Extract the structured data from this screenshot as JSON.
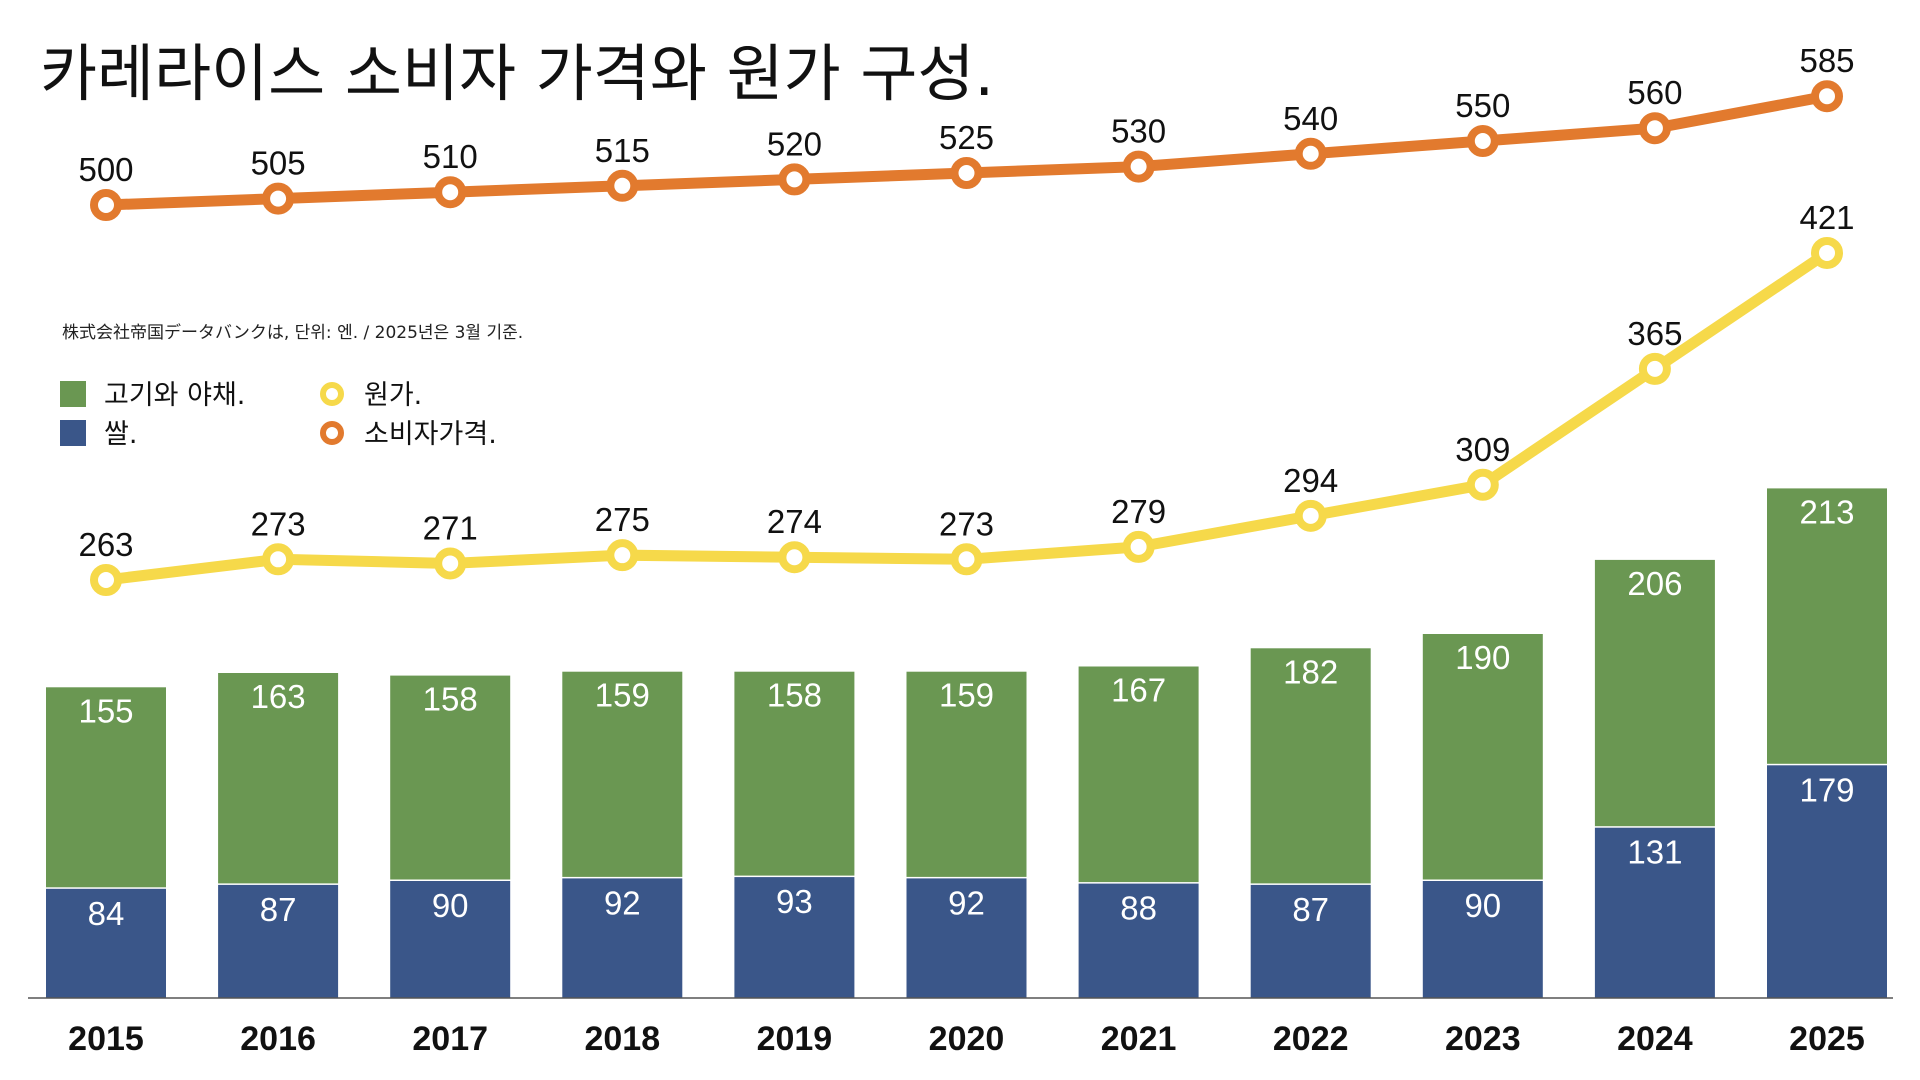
{
  "title": "카레라이스 소비자 가격와 원가 구성.",
  "note": "株式会社帝国データバンクは, 단위: 엔.  / 2025년은 3월 기준.",
  "legend": [
    {
      "label": "고기와 야채.",
      "kind": "bar",
      "color": "#6a9752"
    },
    {
      "label": "쌀.",
      "kind": "bar",
      "color": "#3a5689"
    },
    {
      "label": "원가.",
      "kind": "line",
      "color": "#f6d94a"
    },
    {
      "label": "소비자가격.",
      "kind": "line",
      "color": "#e27a2e"
    }
  ],
  "chart_data": {
    "type": "bar",
    "stacked": true,
    "categories": [
      "2015",
      "2016",
      "2017",
      "2018",
      "2019",
      "2020",
      "2021",
      "2022",
      "2023",
      "2024",
      "2025"
    ],
    "series": [
      {
        "name": "쌀.",
        "type": "bar",
        "color": "#3a5689",
        "values": [
          84,
          87,
          90,
          92,
          93,
          92,
          88,
          87,
          90,
          131,
          179
        ]
      },
      {
        "name": "고기와 야채.",
        "type": "bar",
        "color": "#6a9752",
        "values": [
          155,
          163,
          158,
          159,
          158,
          159,
          167,
          182,
          190,
          206,
          213
        ]
      },
      {
        "name": "원가.",
        "type": "line",
        "color": "#f6d94a",
        "values": [
          263,
          273,
          271,
          275,
          274,
          273,
          279,
          294,
          309,
          365,
          421
        ]
      },
      {
        "name": "소비자가격.",
        "type": "line",
        "color": "#e27a2e",
        "values": [
          500,
          505,
          510,
          515,
          520,
          525,
          530,
          540,
          550,
          560,
          585
        ]
      }
    ],
    "xlabel": "",
    "ylabel": "",
    "grid": false,
    "legend_position": "top-left"
  }
}
